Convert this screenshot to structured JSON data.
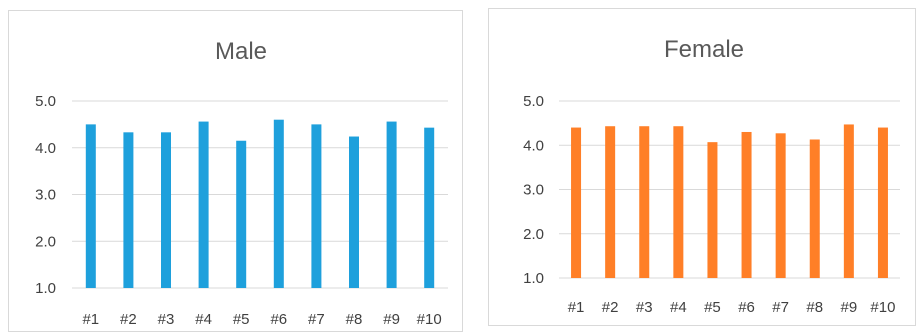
{
  "chart_data": [
    {
      "type": "bar",
      "title": "Male",
      "categories": [
        "#1",
        "#2",
        "#3",
        "#4",
        "#5",
        "#6",
        "#7",
        "#8",
        "#9",
        "#10"
      ],
      "values": [
        4.5,
        4.33,
        4.33,
        4.56,
        4.15,
        4.6,
        4.5,
        4.24,
        4.56,
        4.43
      ],
      "ylim": [
        1.0,
        5.0
      ],
      "yticks": [
        "1.0",
        "2.0",
        "3.0",
        "4.0",
        "5.0"
      ],
      "grid": true,
      "bar_color": "#1ea0dc"
    },
    {
      "type": "bar",
      "title": "Female",
      "categories": [
        "#1",
        "#2",
        "#3",
        "#4",
        "#5",
        "#6",
        "#7",
        "#8",
        "#9",
        "#10"
      ],
      "values": [
        4.4,
        4.43,
        4.43,
        4.43,
        4.07,
        4.3,
        4.27,
        4.13,
        4.47,
        4.4
      ],
      "ylim": [
        1.0,
        5.0
      ],
      "yticks": [
        "1.0",
        "2.0",
        "3.0",
        "4.0",
        "5.0"
      ],
      "grid": true,
      "bar_color": "#ff7f27"
    }
  ]
}
